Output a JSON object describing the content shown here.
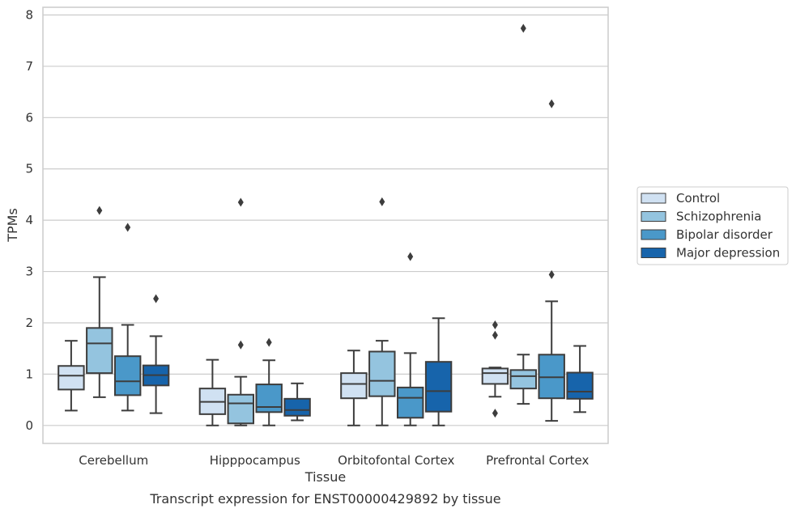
{
  "caption": "Transcript expression for ENST00000429892 by tissue",
  "chart_data": {
    "type": "box",
    "xlabel": "Tissue",
    "ylabel": "TPMs",
    "ylim": [
      -0.35,
      8.15
    ],
    "yticks": [
      "0",
      "1",
      "2",
      "3",
      "4",
      "5",
      "6",
      "7",
      "8"
    ],
    "grid": "horizontal",
    "legend_position": "right",
    "categories": [
      "Cerebellum",
      "Hipppocampus",
      "Orbitofontal Cortex",
      "Prefrontal Cortex"
    ],
    "series": [
      {
        "name": "Control",
        "color": "#d0e1f2",
        "boxes": [
          {
            "whislo": 0.29,
            "q1": 0.7,
            "med": 0.97,
            "q3": 1.16,
            "whishi": 1.65,
            "fliers": []
          },
          {
            "whislo": 0.0,
            "q1": 0.22,
            "med": 0.46,
            "q3": 0.72,
            "whishi": 1.28,
            "fliers": []
          },
          {
            "whislo": 0.0,
            "q1": 0.53,
            "med": 0.81,
            "q3": 1.02,
            "whishi": 1.46,
            "fliers": []
          },
          {
            "whislo": 0.56,
            "q1": 0.81,
            "med": 1.02,
            "q3": 1.11,
            "whishi": 1.13,
            "fliers": [
              1.96,
              1.76,
              0.24
            ]
          }
        ]
      },
      {
        "name": "Schizophrenia",
        "color": "#94c4df",
        "boxes": [
          {
            "whislo": 0.55,
            "q1": 1.02,
            "med": 1.6,
            "q3": 1.9,
            "whishi": 2.89,
            "fliers": [
              4.19
            ]
          },
          {
            "whislo": 0.0,
            "q1": 0.04,
            "med": 0.43,
            "q3": 0.6,
            "whishi": 0.95,
            "fliers": [
              4.35,
              1.57
            ]
          },
          {
            "whislo": 0.0,
            "q1": 0.57,
            "med": 0.87,
            "q3": 1.44,
            "whishi": 1.65,
            "fliers": [
              4.36
            ]
          },
          {
            "whislo": 0.42,
            "q1": 0.72,
            "med": 0.96,
            "q3": 1.08,
            "whishi": 1.38,
            "fliers": [
              7.74
            ]
          }
        ]
      },
      {
        "name": "Bipolar disorder",
        "color": "#4a98c9",
        "boxes": [
          {
            "whislo": 0.29,
            "q1": 0.59,
            "med": 0.86,
            "q3": 1.35,
            "whishi": 1.96,
            "fliers": [
              3.86
            ]
          },
          {
            "whislo": 0.0,
            "q1": 0.26,
            "med": 0.36,
            "q3": 0.8,
            "whishi": 1.27,
            "fliers": [
              1.62
            ]
          },
          {
            "whislo": 0.0,
            "q1": 0.15,
            "med": 0.54,
            "q3": 0.74,
            "whishi": 1.41,
            "fliers": [
              3.29
            ]
          },
          {
            "whislo": 0.09,
            "q1": 0.53,
            "med": 0.94,
            "q3": 1.38,
            "whishi": 2.42,
            "fliers": [
              6.27,
              2.94
            ]
          }
        ]
      },
      {
        "name": "Major depression",
        "color": "#1764ab",
        "boxes": [
          {
            "whislo": 0.24,
            "q1": 0.78,
            "med": 0.98,
            "q3": 1.17,
            "whishi": 1.74,
            "fliers": [
              2.47
            ]
          },
          {
            "whislo": 0.1,
            "q1": 0.19,
            "med": 0.3,
            "q3": 0.52,
            "whishi": 0.82,
            "fliers": []
          },
          {
            "whislo": 0.0,
            "q1": 0.27,
            "med": 0.67,
            "q3": 1.24,
            "whishi": 2.09,
            "fliers": []
          },
          {
            "whislo": 0.26,
            "q1": 0.52,
            "med": 0.66,
            "q3": 1.03,
            "whishi": 1.55,
            "fliers": []
          }
        ]
      }
    ]
  }
}
